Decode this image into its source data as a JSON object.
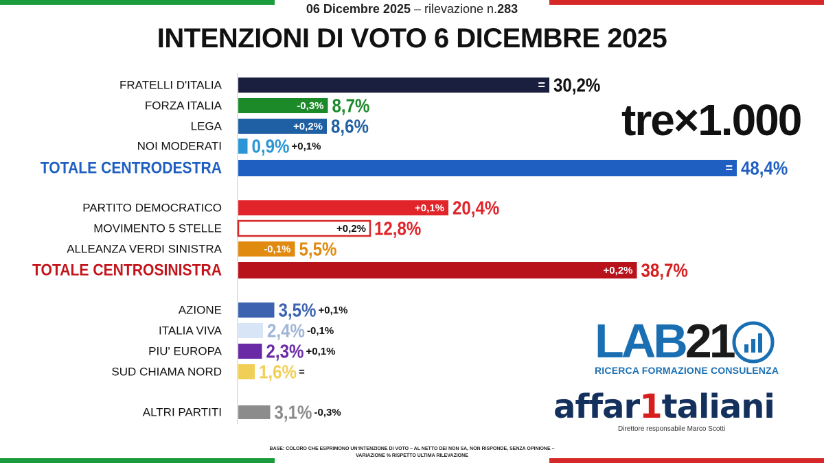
{
  "header": {
    "subtitle_date": "06 Dicembre 2025",
    "subtitle_sep": " – rilevazione n.",
    "subtitle_number": "283",
    "title": "INTENZIONI DI VOTO 6 DICEMBRE 2025"
  },
  "colors": {
    "green": "#1a9b3c",
    "red": "#d62828",
    "white": "#ffffff"
  },
  "chart_data": {
    "type": "bar",
    "orientation": "horizontal",
    "title": "INTENZIONI DI VOTO 6 DICEMBRE 2025",
    "unit": "%",
    "xlim": [
      0,
      50
    ],
    "bars": [
      {
        "label": "FRATELLI D'ITALIA",
        "value": 30.2,
        "value_label": "30,2%",
        "change": "=",
        "change_pos": "inside",
        "color": "#1b1f3f",
        "value_color": "#111111",
        "total": false
      },
      {
        "label": "FORZA ITALIA",
        "value": 8.7,
        "value_label": "8,7%",
        "change": "-0,3%",
        "change_pos": "inside",
        "color": "#1d8a2a",
        "value_color": "#1d8a2a",
        "total": false
      },
      {
        "label": "LEGA",
        "value": 8.6,
        "value_label": "8,6%",
        "change": "+0,2%",
        "change_pos": "inside",
        "color": "#1f5fa3",
        "value_color": "#1f5fa3",
        "total": false
      },
      {
        "label": "NOI MODERATI",
        "value": 0.9,
        "value_label": "0,9%",
        "change": "+0,1%",
        "change_pos": "after",
        "color": "#2b95d6",
        "value_color": "#2b95d6",
        "total": false
      },
      {
        "label": "TOTALE CENTRODESTRA",
        "value": 48.4,
        "value_label": "48,4%",
        "change": "=",
        "change_pos": "inside",
        "color": "#1f5fc2",
        "value_color": "#1f5fc2",
        "total": true,
        "label_color": "#1f5fc2"
      },
      {
        "label": "PARTITO DEMOCRATICO",
        "value": 20.4,
        "value_label": "20,4%",
        "change": "+0,1%",
        "change_pos": "inside",
        "color": "#e0242a",
        "value_color": "#e0242a",
        "total": false
      },
      {
        "label": "MOVIMENTO 5 STELLE",
        "value": 12.8,
        "value_label": "12,8%",
        "change": "+0,2%",
        "change_pos": "inside",
        "color": "#ffffff",
        "outline": "#d62828",
        "value_color": "#e0242a",
        "total": false
      },
      {
        "label": "ALLEANZA VERDI SINISTRA",
        "value": 5.5,
        "value_label": "5,5%",
        "change": "-0,1%",
        "change_pos": "inside",
        "color": "#e08a10",
        "value_color": "#e08a10",
        "total": false
      },
      {
        "label": "TOTALE CENTROSINISTRA",
        "value": 38.7,
        "value_label": "38,7%",
        "change": "+0,2%",
        "change_pos": "inside",
        "color": "#b8121a",
        "value_color": "#d61e1e",
        "total": true,
        "label_color": "#c4141b"
      },
      {
        "label": "AZIONE",
        "value": 3.5,
        "value_label": "3,5%",
        "change": "+0,1%",
        "change_pos": "after",
        "color": "#3d63b0",
        "value_color": "#3d63b0",
        "total": false
      },
      {
        "label": "ITALIA VIVA",
        "value": 2.4,
        "value_label": "2,4%",
        "change": "-0,1%",
        "change_pos": "after",
        "color": "#d7e5f7",
        "value_color": "#9fb5d6",
        "total": false
      },
      {
        "label": "PIU' EUROPA",
        "value": 2.3,
        "value_label": "2,3%",
        "change": "+0,1%",
        "change_pos": "after",
        "color": "#6a2aa6",
        "value_color": "#6a2aa6",
        "total": false
      },
      {
        "label": "SUD CHIAMA NORD",
        "value": 1.6,
        "value_label": "1,6%",
        "change": "=",
        "change_pos": "after",
        "color": "#f1cf56",
        "value_color": "#f1cf56",
        "total": false
      },
      {
        "label": "ALTRI PARTITI",
        "value": 3.1,
        "value_label": "3,1%",
        "change": "-0,3%",
        "change_pos": "after",
        "color": "#8c8c8c",
        "value_color": "#8c8c8c",
        "total": false
      }
    ]
  },
  "logos": {
    "trex": "tre×1.000",
    "lab21": "LAB21",
    "lab21_sub": "RICERCA FORMAZIONE CONSULENZA",
    "affari": "affar",
    "affari_one": "1",
    "affari_rest": "taliani",
    "affari_sub": "Direttore responsabile Marco Scotti"
  },
  "footnote": "BASE: COLORO CHE ESPRIMONO UN'INTENZIONE DI VOTO – AL NETTO DEI NON SA, NON RISPONDE, SENZA OPINIONE – VARIAZIONE % RISPETTO ULTIMA RILEVAZIONE"
}
